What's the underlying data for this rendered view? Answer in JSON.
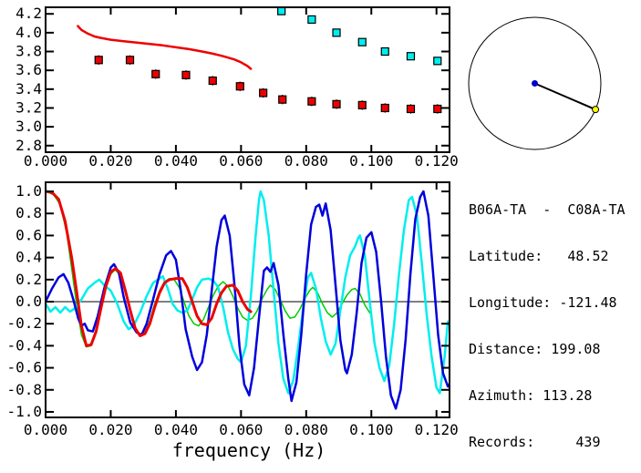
{
  "info_panel": {
    "station_pair": "B06A-TA  -  C08A-TA",
    "station_a": "B06A-TA",
    "station_b": "C08A-TA",
    "rows": [
      {
        "label": "Latitude:",
        "value": "48.52",
        "text": "Latitude:   48.52"
      },
      {
        "label": "Longitude:",
        "value": "-121.48",
        "text": "Longitude: -121.48"
      },
      {
        "label": "Distance:",
        "value": "199.08",
        "text": "Distance: 199.08"
      },
      {
        "label": "Azimuth:",
        "value": "113.28",
        "text": "Azimuth: 113.28"
      },
      {
        "label": "Records:",
        "value": "439",
        "text": "Records:     439"
      }
    ]
  },
  "azimuth_diagram": {
    "azimuth_deg": 113.28,
    "circle_color": "#000000",
    "line_color": "#000000",
    "center_marker_color": "#0000cc",
    "edge_marker_color": "#ffff00"
  },
  "chart_data": [
    {
      "id": "dispersion",
      "type": "line",
      "title": "",
      "xlabel": "",
      "ylabel": "",
      "grid": false,
      "legend": "none",
      "xlim": [
        0,
        0.124
      ],
      "ylim": [
        2.73,
        4.27
      ],
      "xticks": [
        0,
        0.02,
        0.04,
        0.06,
        0.08,
        0.1,
        0.12
      ],
      "xtick_labels": [
        "0.000",
        "0.020",
        "0.040",
        "0.060",
        "0.080",
        "0.100",
        "0.120"
      ],
      "yticks": [
        2.8,
        3.0,
        3.2,
        3.4,
        3.6,
        3.8,
        4.0,
        4.2
      ],
      "ytick_labels": [
        "2.8",
        "3.0",
        "3.2",
        "3.4",
        "3.6",
        "3.8",
        "4.0",
        "4.2"
      ],
      "series": [
        {
          "name": "red-curve",
          "type": "line",
          "color": "#ee0000",
          "width": 2.5,
          "x": [
            0.0099,
            0.011,
            0.013,
            0.015,
            0.017,
            0.02,
            0.024,
            0.028,
            0.032,
            0.036,
            0.04,
            0.044,
            0.048,
            0.051,
            0.054,
            0.056,
            0.058,
            0.06,
            0.062,
            0.063
          ],
          "y": [
            4.07,
            4.03,
            3.99,
            3.96,
            3.945,
            3.925,
            3.91,
            3.895,
            3.88,
            3.865,
            3.845,
            3.825,
            3.8,
            3.78,
            3.755,
            3.735,
            3.715,
            3.685,
            3.645,
            3.615
          ]
        },
        {
          "name": "red-squares",
          "type": "scatter",
          "marker": "square",
          "color": "#ee0000",
          "yerr": 0.05,
          "x": [
            0.0163,
            0.0259,
            0.0338,
            0.0431,
            0.0513,
            0.0597,
            0.0668,
            0.0727,
            0.0817,
            0.0893,
            0.0972,
            0.1042,
            0.1121,
            0.1203
          ],
          "y": [
            3.71,
            3.71,
            3.56,
            3.55,
            3.49,
            3.43,
            3.36,
            3.29,
            3.27,
            3.24,
            3.23,
            3.2,
            3.19,
            3.19
          ]
        },
        {
          "name": "cyan-squares",
          "type": "scatter",
          "marker": "square",
          "color": "#00eeee",
          "yerr": 0.03,
          "x": [
            0.0724,
            0.0817,
            0.0893,
            0.0972,
            0.1042,
            0.1121,
            0.1203
          ],
          "y": [
            4.23,
            4.14,
            4.0,
            3.9,
            3.8,
            3.75,
            3.7
          ]
        }
      ]
    },
    {
      "id": "spectra",
      "type": "line",
      "title": "",
      "xlabel": "frequency (Hz)",
      "ylabel": "",
      "grid": false,
      "legend": "none",
      "zero_line": true,
      "xlim": [
        0,
        0.124
      ],
      "ylim": [
        -1.05,
        1.083
      ],
      "xticks": [
        0,
        0.02,
        0.04,
        0.06,
        0.08,
        0.1,
        0.12
      ],
      "xtick_labels": [
        "0.000",
        "0.020",
        "0.040",
        "0.060",
        "0.080",
        "0.100",
        "0.120"
      ],
      "yticks": [
        -1.0,
        -0.8,
        -0.6,
        -0.4,
        -0.2,
        0.0,
        0.2,
        0.4,
        0.6,
        0.8,
        1.0
      ],
      "ytick_labels": [
        "-1.0",
        "-0.8",
        "-0.6",
        "-0.4",
        "-0.2",
        "0.0",
        "0.2",
        "0.4",
        "0.6",
        "0.8",
        "1.0"
      ],
      "series": [
        {
          "name": "green-trace",
          "type": "line",
          "color": "#00cc00",
          "width": 1.5,
          "x": [
            0,
            0.0025,
            0.0045,
            0.0065,
            0.008,
            0.0095,
            0.011,
            0.0125,
            0.014,
            0.0155,
            0.017,
            0.0185,
            0.02,
            0.0213,
            0.023,
            0.0245,
            0.026,
            0.0275,
            0.029,
            0.0305,
            0.032,
            0.0335,
            0.035,
            0.0365,
            0.038,
            0.0395,
            0.041,
            0.0425,
            0.044,
            0.0455,
            0.047,
            0.0485,
            0.05,
            0.0515,
            0.053,
            0.0545,
            0.056,
            0.0575,
            0.059,
            0.0605,
            0.062,
            0.0635,
            0.065,
            0.0665,
            0.068,
            0.069,
            0.0705,
            0.072,
            0.0735,
            0.075,
            0.0765,
            0.078,
            0.0795,
            0.081,
            0.082,
            0.0835,
            0.085,
            0.0865,
            0.088,
            0.0895,
            0.091,
            0.0925,
            0.094,
            0.095,
            0.0965,
            0.098,
            0.0995,
            0.1
          ],
          "y": [
            1.0,
            0.97,
            0.88,
            0.62,
            0.3,
            -0.02,
            -0.3,
            -0.41,
            -0.4,
            -0.28,
            -0.08,
            0.12,
            0.25,
            0.29,
            0.24,
            0.08,
            -0.1,
            -0.25,
            -0.31,
            -0.28,
            -0.17,
            -0.02,
            0.1,
            0.18,
            0.21,
            0.2,
            0.13,
            0.0,
            -0.13,
            -0.2,
            -0.22,
            -0.16,
            -0.05,
            0.06,
            0.14,
            0.18,
            0.14,
            0.05,
            -0.06,
            -0.14,
            -0.17,
            -0.15,
            -0.08,
            0.03,
            0.11,
            0.15,
            0.11,
            0.02,
            -0.08,
            -0.15,
            -0.14,
            -0.07,
            0.02,
            0.1,
            0.13,
            0.08,
            -0.02,
            -0.1,
            -0.14,
            -0.1,
            -0.02,
            0.06,
            0.11,
            0.12,
            0.07,
            -0.03,
            -0.1,
            -0.12
          ]
        },
        {
          "name": "cyan-trace",
          "type": "line",
          "color": "#00eeee",
          "width": 2.5,
          "x": [
            0,
            0.0015,
            0.003,
            0.0045,
            0.006,
            0.0075,
            0.009,
            0.011,
            0.013,
            0.015,
            0.0165,
            0.018,
            0.02,
            0.022,
            0.024,
            0.0255,
            0.027,
            0.029,
            0.031,
            0.033,
            0.035,
            0.036,
            0.0375,
            0.039,
            0.0405,
            0.042,
            0.0435,
            0.045,
            0.0465,
            0.048,
            0.05,
            0.0515,
            0.053,
            0.0545,
            0.056,
            0.0575,
            0.059,
            0.06,
            0.0615,
            0.063,
            0.0645,
            0.0655,
            0.066,
            0.067,
            0.0685,
            0.07,
            0.0715,
            0.073,
            0.0745,
            0.076,
            0.0775,
            0.079,
            0.0805,
            0.0815,
            0.083,
            0.0845,
            0.086,
            0.0875,
            0.089,
            0.0905,
            0.092,
            0.0935,
            0.095,
            0.096,
            0.0965,
            0.098,
            0.0995,
            0.101,
            0.1025,
            0.104,
            0.1055,
            0.107,
            0.1085,
            0.11,
            0.1115,
            0.1125,
            0.114,
            0.1155,
            0.117,
            0.1185,
            0.12,
            0.121,
            0.1225,
            0.1235
          ],
          "y": [
            -0.02,
            -0.09,
            -0.05,
            -0.1,
            -0.05,
            -0.09,
            -0.06,
            0.02,
            0.12,
            0.17,
            0.2,
            0.15,
            0.1,
            -0.02,
            -0.18,
            -0.25,
            -0.22,
            -0.1,
            0.05,
            0.17,
            0.21,
            0.23,
            0.12,
            -0.02,
            -0.08,
            -0.1,
            -0.08,
            0.02,
            0.13,
            0.2,
            0.21,
            0.19,
            0.13,
            -0.05,
            -0.28,
            -0.43,
            -0.52,
            -0.55,
            -0.4,
            0.05,
            0.6,
            0.92,
            1.0,
            0.92,
            0.6,
            0.1,
            -0.38,
            -0.7,
            -0.83,
            -0.72,
            -0.42,
            -0.08,
            0.22,
            0.26,
            0.12,
            -0.15,
            -0.36,
            -0.48,
            -0.38,
            -0.08,
            0.22,
            0.42,
            0.5,
            0.58,
            0.6,
            0.42,
            0.0,
            -0.38,
            -0.6,
            -0.72,
            -0.58,
            -0.2,
            0.25,
            0.65,
            0.92,
            0.95,
            0.78,
            0.35,
            -0.12,
            -0.5,
            -0.78,
            -0.83,
            -0.5,
            -0.18
          ]
        },
        {
          "name": "blue-trace",
          "type": "line",
          "color": "#0000dd",
          "width": 2.5,
          "x": [
            0,
            0.002,
            0.004,
            0.0055,
            0.007,
            0.0085,
            0.01,
            0.011,
            0.012,
            0.013,
            0.0145,
            0.016,
            0.018,
            0.02,
            0.021,
            0.0225,
            0.024,
            0.026,
            0.028,
            0.0295,
            0.031,
            0.033,
            0.035,
            0.037,
            0.0385,
            0.04,
            0.0415,
            0.043,
            0.045,
            0.0465,
            0.048,
            0.0495,
            0.051,
            0.0525,
            0.054,
            0.055,
            0.0565,
            0.058,
            0.0595,
            0.061,
            0.0625,
            0.064,
            0.0655,
            0.067,
            0.068,
            0.069,
            0.07,
            0.0715,
            0.073,
            0.0745,
            0.0755,
            0.077,
            0.0785,
            0.08,
            0.0815,
            0.083,
            0.084,
            0.085,
            0.086,
            0.0875,
            0.089,
            0.0905,
            0.092,
            0.0925,
            0.094,
            0.0955,
            0.097,
            0.0985,
            0.1,
            0.1015,
            0.103,
            0.1045,
            0.106,
            0.1075,
            0.109,
            0.1105,
            0.112,
            0.1135,
            0.115,
            0.116,
            0.1175,
            0.119,
            0.1205,
            0.122,
            0.1235,
            0.1245
          ],
          "y": [
            0.0,
            0.12,
            0.22,
            0.25,
            0.17,
            0.02,
            -0.15,
            -0.22,
            -0.2,
            -0.26,
            -0.27,
            -0.13,
            0.12,
            0.31,
            0.34,
            0.26,
            0.04,
            -0.19,
            -0.28,
            -0.3,
            -0.2,
            0.02,
            0.25,
            0.42,
            0.46,
            0.38,
            0.1,
            -0.25,
            -0.5,
            -0.62,
            -0.55,
            -0.3,
            0.1,
            0.5,
            0.74,
            0.78,
            0.6,
            0.15,
            -0.4,
            -0.75,
            -0.85,
            -0.6,
            -0.15,
            0.28,
            0.31,
            0.27,
            0.35,
            0.15,
            -0.3,
            -0.7,
            -0.9,
            -0.73,
            -0.3,
            0.25,
            0.7,
            0.86,
            0.88,
            0.78,
            0.89,
            0.65,
            0.15,
            -0.35,
            -0.62,
            -0.65,
            -0.48,
            -0.1,
            0.35,
            0.58,
            0.63,
            0.45,
            0.0,
            -0.5,
            -0.85,
            -0.97,
            -0.8,
            -0.35,
            0.25,
            0.75,
            0.95,
            1.0,
            0.78,
            0.25,
            -0.3,
            -0.65,
            -0.77,
            -0.72
          ]
        },
        {
          "name": "red-trace",
          "type": "line",
          "color": "#ee0000",
          "width": 3,
          "x": [
            0,
            0.002,
            0.004,
            0.006,
            0.008,
            0.0095,
            0.011,
            0.0125,
            0.014,
            0.0155,
            0.017,
            0.0185,
            0.02,
            0.0215,
            0.023,
            0.0245,
            0.026,
            0.0275,
            0.029,
            0.0305,
            0.032,
            0.0335,
            0.035,
            0.0365,
            0.038,
            0.04,
            0.042,
            0.0435,
            0.045,
            0.0465,
            0.048,
            0.0495,
            0.051,
            0.0525,
            0.054,
            0.0555,
            0.0575,
            0.059,
            0.0605,
            0.062,
            0.063
          ],
          "y": [
            1.0,
            0.99,
            0.93,
            0.73,
            0.4,
            0.1,
            -0.22,
            -0.4,
            -0.39,
            -0.27,
            -0.06,
            0.14,
            0.27,
            0.3,
            0.26,
            0.1,
            -0.08,
            -0.24,
            -0.31,
            -0.29,
            -0.2,
            -0.05,
            0.08,
            0.17,
            0.2,
            0.21,
            0.21,
            0.13,
            0.0,
            -0.13,
            -0.2,
            -0.21,
            -0.15,
            -0.02,
            0.08,
            0.14,
            0.15,
            0.1,
            0.0,
            -0.07,
            -0.09
          ]
        }
      ]
    }
  ]
}
